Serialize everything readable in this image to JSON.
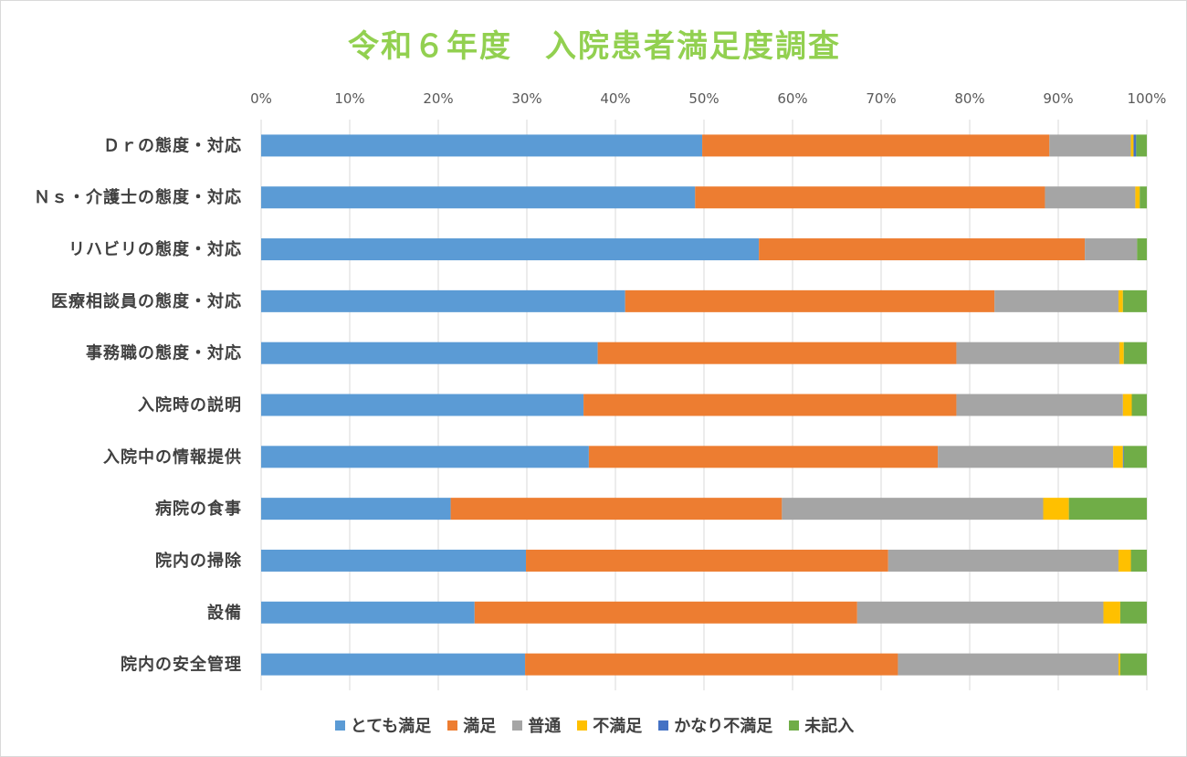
{
  "chart_data": {
    "type": "bar",
    "orientation": "horizontal",
    "stacked": "percent",
    "title": "令和６年度　入院患者満足度調査",
    "xlim": [
      0,
      100
    ],
    "x_ticks": [
      "0%",
      "10%",
      "20%",
      "30%",
      "40%",
      "50%",
      "60%",
      "70%",
      "80%",
      "90%",
      "100%"
    ],
    "gridlines": true,
    "legend_position": "bottom",
    "categories": [
      "Ｄｒの態度・対応",
      "Ｎｓ・介護士の態度・対応",
      "リハビリの態度・対応",
      "医療相談員の態度・対応",
      "事務職の態度・対応",
      "入院時の説明",
      "入院中の情報提供",
      "病院の食事",
      "院内の掃除",
      "設備",
      "院内の安全管理"
    ],
    "series": [
      {
        "name": "とても満足",
        "color": "#5b9bd5",
        "values": [
          49.8,
          49.0,
          56.2,
          41.1,
          38.0,
          36.4,
          37.0,
          21.4,
          29.9,
          24.1,
          29.8
        ]
      },
      {
        "name": "満足",
        "color": "#ed7d31",
        "values": [
          39.2,
          39.5,
          36.8,
          41.7,
          40.5,
          42.1,
          39.4,
          37.4,
          40.9,
          43.2,
          42.1
        ]
      },
      {
        "name": "普通",
        "color": "#a5a5a5",
        "values": [
          9.2,
          10.2,
          5.9,
          14.0,
          18.4,
          18.8,
          19.8,
          29.5,
          26.0,
          27.8,
          24.9
        ]
      },
      {
        "name": "不満足",
        "color": "#ffc000",
        "values": [
          0.3,
          0.5,
          0.0,
          0.5,
          0.5,
          1.0,
          1.1,
          2.9,
          1.4,
          1.9,
          0.2
        ]
      },
      {
        "name": "かなり不満足",
        "color": "#4472c4",
        "values": [
          0.3,
          0.0,
          0.0,
          0.0,
          0.0,
          0.0,
          0.1,
          0.0,
          0.0,
          0.0,
          0.0
        ]
      },
      {
        "name": "未記入",
        "color": "#70ad47",
        "values": [
          1.2,
          0.8,
          1.1,
          2.7,
          2.6,
          1.7,
          2.6,
          8.8,
          1.8,
          3.0,
          3.0
        ]
      }
    ]
  }
}
